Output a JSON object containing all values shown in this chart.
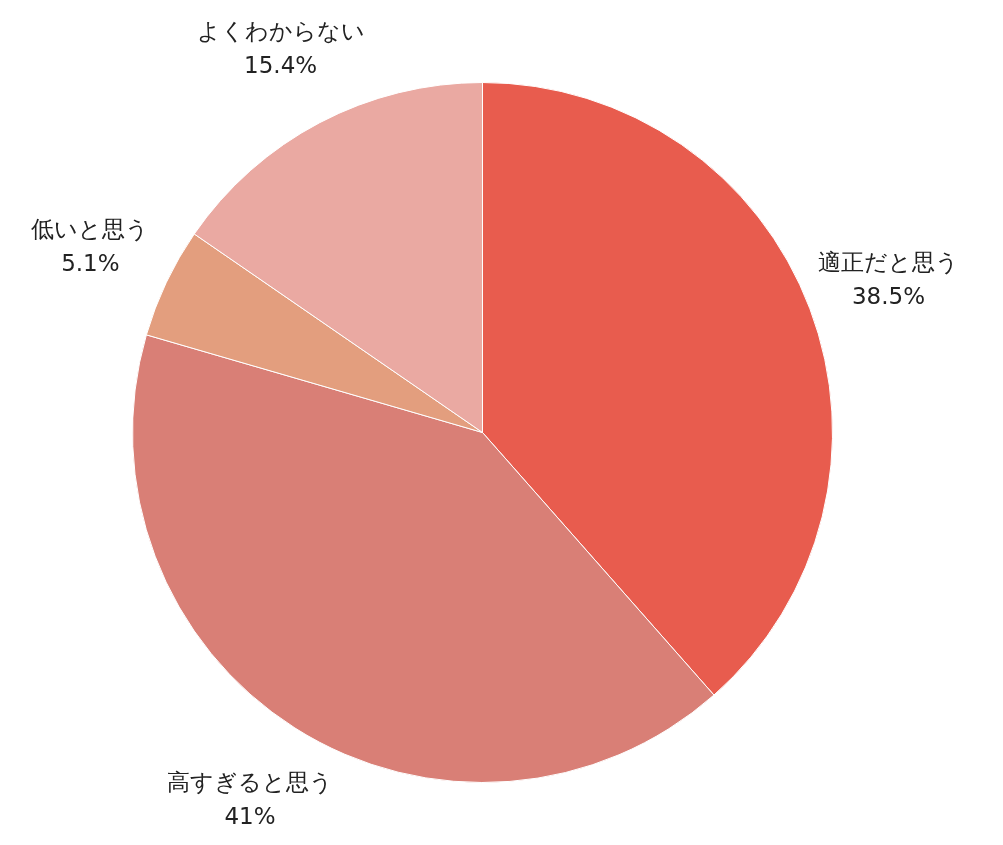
{
  "chart_data": {
    "type": "pie",
    "categories": [
      "適正だと思う",
      "高すぎると思う",
      "低いと思う",
      "よくわからない"
    ],
    "values": [
      38.5,
      41,
      5.1,
      15.4
    ],
    "colors": [
      "#e85c4e",
      "#d97f76",
      "#e39e7e",
      "#eaa9a2"
    ],
    "value_labels": [
      "38.5%",
      "41%",
      "5.1%",
      "15.4%"
    ]
  }
}
